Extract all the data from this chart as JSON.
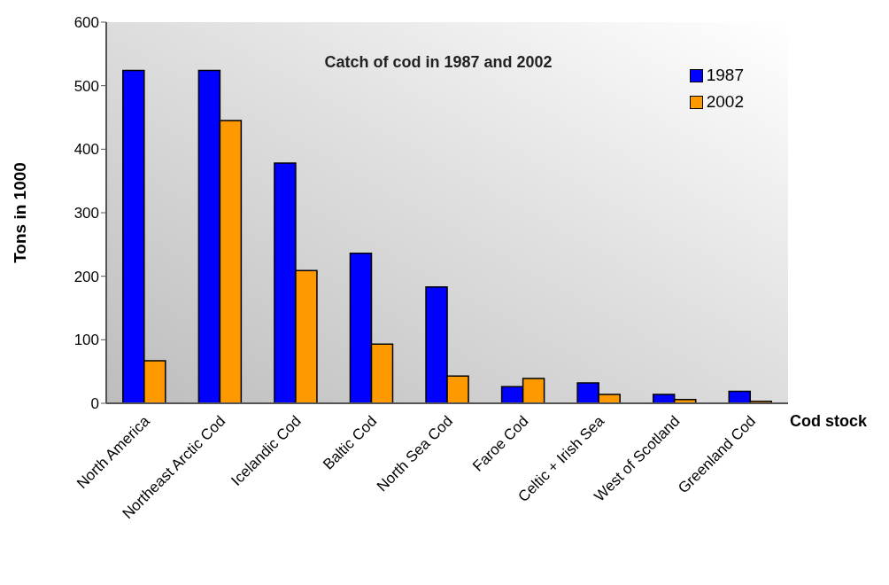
{
  "chart_data": {
    "type": "bar",
    "title": "Catch of cod in 1987 and 2002",
    "xlabel": "Cod stock",
    "ylabel": "Tons in 1000",
    "categories": [
      "North America",
      "Northeast Arctic Cod",
      "Icelandic Cod",
      "Baltic Cod",
      "North Sea Cod",
      "Faroe Cod",
      "Celtic + Irish Sea",
      "West of Scotland",
      "Greenland Cod"
    ],
    "series": [
      {
        "name": "1987",
        "color": "#0000ff",
        "values": [
          524,
          524,
          378,
          236,
          183,
          26,
          32,
          14,
          19
        ]
      },
      {
        "name": "2002",
        "color": "#ff9900",
        "values": [
          67,
          445,
          209,
          93,
          43,
          39,
          14,
          6,
          3
        ]
      }
    ],
    "ylim": [
      0,
      600
    ],
    "yticks": [
      0,
      100,
      200,
      300,
      400,
      500,
      600
    ],
    "grid": false,
    "legend": "top right"
  }
}
